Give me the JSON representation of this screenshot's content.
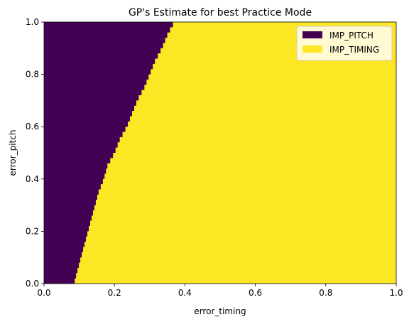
{
  "chart_data": {
    "type": "heatmap",
    "title": "GP's Estimate for best Practice Mode",
    "xlabel": "error_timing",
    "ylabel": "error_pitch",
    "xlim": [
      0.0,
      1.0
    ],
    "ylim": [
      0.0,
      1.0
    ],
    "xticks": [
      "0.0",
      "0.2",
      "0.4",
      "0.6",
      "0.8",
      "1.0"
    ],
    "yticks": [
      "0.0",
      "0.2",
      "0.4",
      "0.6",
      "0.8",
      "1.0"
    ],
    "grid": false,
    "legend_position": "top-right",
    "series": [
      {
        "name": "IMP_PITCH",
        "color": "#440154"
      },
      {
        "name": "IMP_TIMING",
        "color": "#fde725"
      }
    ],
    "boundary": {
      "description_y": [
        0.0,
        0.05,
        0.1,
        0.15,
        0.2,
        0.25,
        0.3,
        0.35,
        0.4,
        0.45,
        0.5,
        0.55,
        0.6,
        0.65,
        0.7,
        0.75,
        0.8,
        0.85,
        0.9,
        0.95,
        1.0
      ],
      "x": [
        0.085,
        0.095,
        0.105,
        0.115,
        0.125,
        0.135,
        0.145,
        0.155,
        0.17,
        0.18,
        0.2,
        0.215,
        0.235,
        0.25,
        0.265,
        0.285,
        0.3,
        0.315,
        0.335,
        0.35,
        0.37
      ]
    }
  }
}
